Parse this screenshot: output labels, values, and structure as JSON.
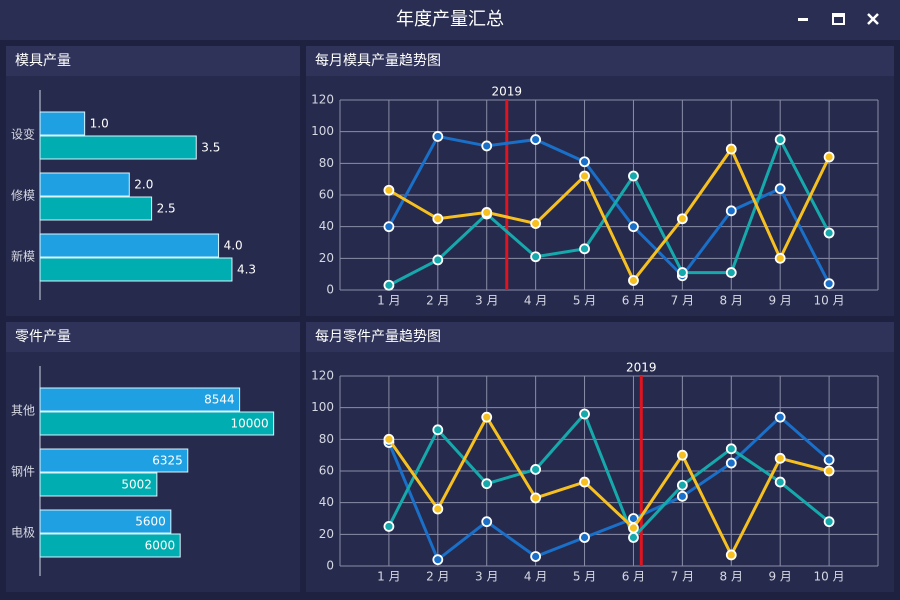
{
  "window": {
    "title": "年度产量汇总"
  },
  "chart_data": [
    {
      "type": "hbar",
      "title": "模具产量",
      "categories": [
        "设变",
        "修模",
        "新模"
      ],
      "series": [
        {
          "color": "#1fa0e2",
          "values": [
            1.0,
            2.0,
            4.0
          ],
          "value_labels": [
            "1.0",
            "2.0",
            "4.0"
          ]
        },
        {
          "color": "#00adb0",
          "values": [
            3.5,
            2.5,
            4.3
          ],
          "value_labels": [
            "3.5",
            "2.5",
            "4.3"
          ]
        }
      ],
      "xlim": [
        0,
        5.6
      ],
      "label_position": "outside"
    },
    {
      "type": "line",
      "title": "每月模具产量趋势图",
      "categories": [
        "1 月",
        "2 月",
        "3 月",
        "4 月",
        "5 月",
        "6 月",
        "7 月",
        "8 月",
        "9 月",
        "10 月"
      ],
      "series": [
        {
          "color": "#1a6fc8",
          "values": [
            40,
            97,
            91,
            95,
            81,
            40,
            9,
            50,
            64,
            4
          ]
        },
        {
          "color": "#16a9ac",
          "values": [
            3,
            19,
            48,
            21,
            26,
            72,
            11,
            11,
            95,
            36
          ]
        },
        {
          "color": "#f6c021",
          "values": [
            63,
            45,
            49,
            42,
            72,
            6,
            45,
            89,
            20,
            84
          ]
        }
      ],
      "ylim": [
        0,
        120
      ],
      "yticks": [
        0,
        20,
        40,
        60,
        80,
        100,
        120
      ],
      "grid": true,
      "vline": {
        "label": "2019",
        "x": 3.41,
        "color": "#e0141e"
      }
    },
    {
      "type": "hbar",
      "title": "零件产量",
      "categories": [
        "其他",
        "钢件",
        "电极"
      ],
      "series": [
        {
          "color": "#1fa0e2",
          "values": [
            8544,
            6325,
            5600
          ]
        },
        {
          "color": "#00adb0",
          "values": [
            10000,
            5002,
            6000
          ]
        }
      ],
      "xlim": [
        0,
        10700
      ],
      "label_position": "inside"
    },
    {
      "type": "line",
      "title": "每月零件产量趋势图",
      "categories": [
        "1 月",
        "2 月",
        "3 月",
        "4 月",
        "5 月",
        "6 月",
        "7 月",
        "8 月",
        "9 月",
        "10 月"
      ],
      "series": [
        {
          "color": "#1a6fc8",
          "values": [
            78,
            4,
            28,
            6,
            18,
            30,
            44,
            65,
            94,
            67
          ]
        },
        {
          "color": "#16a9ac",
          "values": [
            25,
            86,
            52,
            61,
            96,
            18,
            51,
            74,
            53,
            28
          ]
        },
        {
          "color": "#f6c021",
          "values": [
            80,
            36,
            94,
            43,
            53,
            24,
            70,
            7,
            68,
            60
          ]
        }
      ],
      "ylim": [
        0,
        120
      ],
      "yticks": [
        0,
        20,
        40,
        60,
        80,
        100,
        120
      ],
      "grid": true,
      "vline": {
        "label": "2019",
        "x": 6.16,
        "color": "#e0141e"
      }
    }
  ]
}
